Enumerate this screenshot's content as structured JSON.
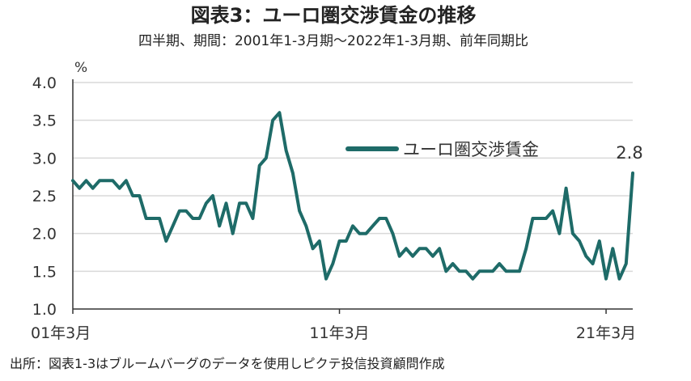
{
  "header": {
    "title": "図表3：ユーロ圏交渉賃金の推移",
    "subtitle": "四半期、期間：2001年1-3月期～2022年1-3月期、前年同期比"
  },
  "footer": {
    "source": "出所：図表1-3はブルームバーグのデータを使用しピクテ投信投資顧問作成"
  },
  "colors": {
    "series": "#1e6b68",
    "grid": "#d9d9d9",
    "axis": "#333333"
  },
  "chart_data": {
    "type": "line",
    "title": "図表3：ユーロ圏交渉賃金の推移",
    "subtitle": "四半期、期間：2001年1-3月期～2022年1-3月期、前年同期比",
    "ylabel": "%",
    "ylim": [
      1.0,
      4.0
    ],
    "yticks": [
      "1.0",
      "1.5",
      "2.0",
      "2.5",
      "3.0",
      "3.5",
      "4.0"
    ],
    "xticks": [
      {
        "label": "01年3月",
        "index": 0
      },
      {
        "label": "11年3月",
        "index": 40
      },
      {
        "label": "21年3月",
        "index": 80
      }
    ],
    "grid": "horizontal",
    "legend_position": "upper-right",
    "end_label": "2.8",
    "series": [
      {
        "name": "ユーロ圏交渉賃金",
        "values": [
          2.7,
          2.6,
          2.7,
          2.6,
          2.7,
          2.7,
          2.7,
          2.6,
          2.7,
          2.5,
          2.5,
          2.2,
          2.2,
          2.2,
          1.9,
          2.1,
          2.3,
          2.3,
          2.2,
          2.2,
          2.4,
          2.5,
          2.1,
          2.4,
          2.0,
          2.4,
          2.4,
          2.2,
          2.9,
          3.0,
          3.5,
          3.6,
          3.1,
          2.8,
          2.3,
          2.1,
          1.8,
          1.9,
          1.4,
          1.6,
          1.9,
          1.9,
          2.1,
          2.0,
          2.0,
          2.1,
          2.2,
          2.2,
          2.0,
          1.7,
          1.8,
          1.7,
          1.8,
          1.8,
          1.7,
          1.8,
          1.5,
          1.6,
          1.5,
          1.5,
          1.4,
          1.5,
          1.5,
          1.5,
          1.6,
          1.5,
          1.5,
          1.5,
          1.8,
          2.2,
          2.2,
          2.2,
          2.3,
          2.0,
          2.6,
          2.0,
          1.9,
          1.7,
          1.6,
          1.9,
          1.4,
          1.8,
          1.4,
          1.6,
          2.8
        ]
      }
    ]
  }
}
